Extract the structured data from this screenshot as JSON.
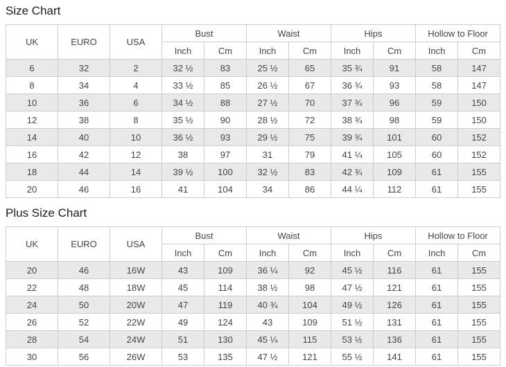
{
  "colors": {
    "stripe_row": "#e9e9e9",
    "grid_border": "#cccccc",
    "text": "#444444",
    "title_text": "#1c1c1c",
    "background": "#ffffff"
  },
  "chart_data": [
    {
      "type": "table",
      "title": "Size Chart",
      "plain_columns": [
        "UK",
        "EURO",
        "USA"
      ],
      "column_groups": [
        {
          "label": "Bust",
          "sub": [
            "Inch",
            "Cm"
          ]
        },
        {
          "label": "Waist",
          "sub": [
            "Inch",
            "Cm"
          ]
        },
        {
          "label": "Hips",
          "sub": [
            "Inch",
            "Cm"
          ]
        },
        {
          "label": "Hollow to Floor",
          "sub": [
            "Inch",
            "Cm"
          ]
        }
      ],
      "rows": [
        [
          "6",
          "32",
          "2",
          "32 ½",
          "83",
          "25 ½",
          "65",
          "35 ¾",
          "91",
          "58",
          "147"
        ],
        [
          "8",
          "34",
          "4",
          "33 ½",
          "85",
          "26 ½",
          "67",
          "36 ¾",
          "93",
          "58",
          "147"
        ],
        [
          "10",
          "36",
          "6",
          "34 ½",
          "88",
          "27 ½",
          "70",
          "37 ¾",
          "96",
          "59",
          "150"
        ],
        [
          "12",
          "38",
          "8",
          "35 ½",
          "90",
          "28 ½",
          "72",
          "38 ¾",
          "98",
          "59",
          "150"
        ],
        [
          "14",
          "40",
          "10",
          "36 ½",
          "93",
          "29 ½",
          "75",
          "39 ¾",
          "101",
          "60",
          "152"
        ],
        [
          "16",
          "42",
          "12",
          "38",
          "97",
          "31",
          "79",
          "41 ¼",
          "105",
          "60",
          "152"
        ],
        [
          "18",
          "44",
          "14",
          "39 ½",
          "100",
          "32 ½",
          "83",
          "42 ¾",
          "109",
          "61",
          "155"
        ],
        [
          "20",
          "46",
          "16",
          "41",
          "104",
          "34",
          "86",
          "44 ¼",
          "112",
          "61",
          "155"
        ]
      ]
    },
    {
      "type": "table",
      "title": "Plus Size Chart",
      "plain_columns": [
        "UK",
        "EURO",
        "USA"
      ],
      "column_groups": [
        {
          "label": "Bust",
          "sub": [
            "Inch",
            "Cm"
          ]
        },
        {
          "label": "Waist",
          "sub": [
            "Inch",
            "Cm"
          ]
        },
        {
          "label": "Hips",
          "sub": [
            "Inch",
            "Cm"
          ]
        },
        {
          "label": "Hollow to Floor",
          "sub": [
            "Inch",
            "Cm"
          ]
        }
      ],
      "rows": [
        [
          "20",
          "46",
          "16W",
          "43",
          "109",
          "36 ¼",
          "92",
          "45 ½",
          "116",
          "61",
          "155"
        ],
        [
          "22",
          "48",
          "18W",
          "45",
          "114",
          "38 ½",
          "98",
          "47 ½",
          "121",
          "61",
          "155"
        ],
        [
          "24",
          "50",
          "20W",
          "47",
          "119",
          "40 ¾",
          "104",
          "49 ½",
          "126",
          "61",
          "155"
        ],
        [
          "26",
          "52",
          "22W",
          "49",
          "124",
          "43",
          "109",
          "51 ½",
          "131",
          "61",
          "155"
        ],
        [
          "28",
          "54",
          "24W",
          "51",
          "130",
          "45 ¼",
          "115",
          "53 ½",
          "136",
          "61",
          "155"
        ],
        [
          "30",
          "56",
          "26W",
          "53",
          "135",
          "47 ½",
          "121",
          "55 ½",
          "141",
          "61",
          "155"
        ]
      ]
    }
  ]
}
